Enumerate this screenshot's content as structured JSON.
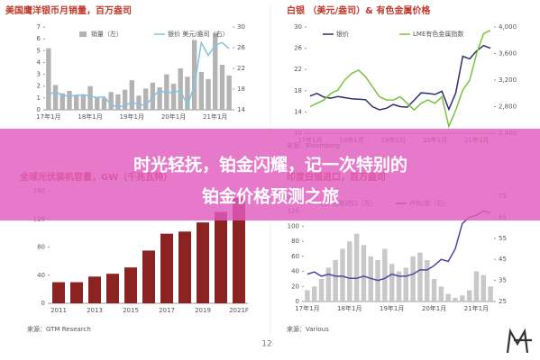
{
  "chart_data": [
    {
      "type": "combo",
      "title": "美国鹰洋银币月销量，百万盎司",
      "categories": [
        "17年1月",
        null,
        null,
        null,
        null,
        null,
        "18年1月",
        null,
        null,
        null,
        null,
        null,
        "19年1月",
        null,
        null,
        null,
        null,
        null,
        "20年1月",
        null,
        null,
        null,
        null,
        null,
        "21年1月",
        null,
        null
      ],
      "series": [
        {
          "name": "销量（左）",
          "type": "bar",
          "color": "#b3b3b3",
          "values": [
            5.2,
            2.1,
            1.4,
            1.6,
            1.2,
            1.3,
            2.0,
            1.1,
            1.0,
            1.5,
            1.3,
            1.7,
            2.5,
            1.2,
            1.8,
            2.3,
            1.9,
            3.0,
            2.2,
            3.5,
            2.8,
            5.9,
            3.2,
            2.6,
            6.5,
            3.8,
            2.9
          ]
        },
        {
          "name": "银价 美元/盎司（右）",
          "type": "line",
          "axis": "y2",
          "color": "#7fc4e0",
          "values": [
            17.0,
            17.5,
            16.8,
            16.6,
            16.8,
            16.9,
            16.6,
            16.4,
            16.5,
            15.0,
            14.5,
            14.8,
            15.5,
            15.0,
            14.9,
            16.5,
            17.8,
            17.2,
            17.5,
            17.6,
            15.0,
            18.5,
            27.0,
            24.5,
            26.5,
            27.0,
            25.8
          ]
        }
      ],
      "ylim": [
        0,
        7
      ],
      "yticks": [
        0,
        1,
        2,
        3,
        4,
        5,
        6,
        7
      ],
      "y2lim": [
        14,
        30
      ],
      "y2ticks": [
        14,
        18,
        22,
        26,
        30
      ]
    },
    {
      "type": "line",
      "title": "白银 （美元/盎司）& 有色金属价格",
      "source": "来源：Bloomberg",
      "categories": [
        "17年1月",
        null,
        null,
        null,
        null,
        null,
        "18年1月",
        null,
        null,
        null,
        null,
        null,
        "19年1月",
        null,
        null,
        null,
        null,
        null,
        "20年1月",
        null,
        null,
        null,
        null,
        null,
        "21年1月",
        null,
        null
      ],
      "series": [
        {
          "name": "银价",
          "color": "#2e2f6e",
          "values": [
            17,
            17.5,
            16.8,
            16.6,
            16.9,
            16.7,
            16.5,
            16.4,
            16.3,
            15.0,
            14.4,
            14.7,
            15.4,
            15.0,
            14.9,
            16.2,
            17.6,
            17.5,
            17.3,
            17.9,
            14.5,
            17.6,
            24.5,
            24.0,
            25.5,
            26.5,
            26.0
          ]
        },
        {
          "name": "LME有色金属指数",
          "axis": "y2",
          "color": "#7cc242",
          "values": [
            2800,
            2850,
            2900,
            3000,
            3050,
            3200,
            3300,
            3350,
            3250,
            3100,
            2950,
            2900,
            2900,
            2950,
            2850,
            2750,
            2850,
            2900,
            2850,
            2950,
            2500,
            2750,
            3050,
            3200,
            3600,
            3900,
            3950
          ]
        }
      ],
      "ylim": [
        10,
        30
      ],
      "yticks": [
        10,
        14,
        18,
        22,
        26,
        30
      ],
      "y2lim": [
        2400,
        4000
      ],
      "y2ticks": [
        {
          "value": 2400,
          "label": "2,400"
        },
        {
          "value": 2800,
          "label": "2,800"
        },
        {
          "value": 3200,
          "label": "3,200"
        },
        {
          "value": 3600,
          "label": "3,600"
        },
        {
          "value": 4000,
          "label": "4,000"
        }
      ]
    },
    {
      "type": "bar",
      "title": "全球光伏装机容量，GW（千兆瓦特）",
      "source": "来源：GTM Research",
      "categories": [
        "2011",
        null,
        "2013",
        null,
        "2015",
        null,
        "2017",
        null,
        "2019",
        null,
        "2021F"
      ],
      "values": [
        30,
        30,
        38,
        42,
        51,
        75,
        99,
        102,
        115,
        130,
        150
      ],
      "color": "#8b2323",
      "ylim": [
        0,
        160
      ],
      "yticks": [
        0,
        40,
        80,
        120,
        160
      ]
    },
    {
      "type": "combo",
      "title": "印度白银进口，百万盎司",
      "source": "来源：Various",
      "categories": [
        "17年1月",
        null,
        null,
        null,
        null,
        null,
        "18年1月",
        null,
        null,
        null,
        null,
        null,
        "19年1月",
        null,
        null,
        null,
        null,
        null,
        "20年1月",
        null,
        null,
        null,
        null,
        null,
        "21年1月",
        null,
        null
      ],
      "series": [
        {
          "name": "白银进口（左）",
          "type": "bar",
          "color": "#c8c8c8",
          "values": [
            15,
            20,
            30,
            45,
            55,
            70,
            80,
            90,
            75,
            60,
            55,
            70,
            50,
            40,
            45,
            60,
            65,
            55,
            30,
            20,
            10,
            5,
            8,
            15,
            40,
            35,
            20
          ]
        },
        {
          "name": "卢比/克（右）",
          "type": "line",
          "axis": "y2",
          "color": "#4a4aa0",
          "values": [
            38,
            39,
            37,
            38,
            37,
            37,
            36,
            36,
            37,
            36,
            35,
            36,
            38,
            37,
            37,
            38,
            40,
            40,
            42,
            45,
            44,
            50,
            62,
            65,
            66,
            68,
            67
          ]
        }
      ],
      "ylim": [
        0,
        140
      ],
      "yticks": [
        0,
        20,
        40,
        60,
        80,
        100,
        120,
        140
      ],
      "y2lim": [
        25,
        75
      ],
      "y2ticks": [
        25,
        35,
        45,
        55,
        65,
        75
      ]
    }
  ],
  "banner": {
    "lines": [
      "时光轻抚，铂金闪耀，记一次特别的",
      "铂金价格预测之旅"
    ]
  },
  "page_number": "12"
}
